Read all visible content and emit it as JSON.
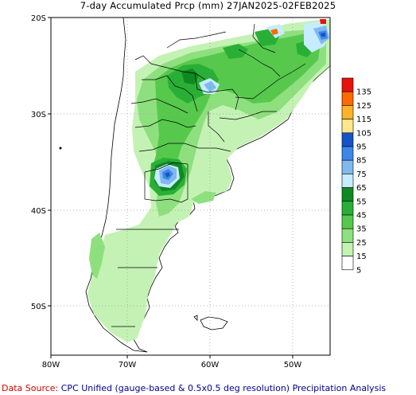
{
  "title": "7-day Accumulated Prcp (mm) 27JAN2025-02FEB2025",
  "axes": {
    "lat_labels": [
      "20S",
      "30S",
      "40S",
      "50S"
    ],
    "lon_labels": [
      "80W",
      "70W",
      "60W",
      "50W"
    ]
  },
  "legend": {
    "labels": [
      "135",
      "125",
      "115",
      "105",
      "95",
      "85",
      "75",
      "65",
      "55",
      "45",
      "35",
      "25",
      "15",
      "5"
    ],
    "colors": [
      "#e8120c",
      "#ff6a00",
      "#ffb428",
      "#ffe78c",
      "#1753c8",
      "#3d87e8",
      "#7fb9ee",
      "#c6ecff",
      "#0e8a21",
      "#2aaf36",
      "#56c94d",
      "#8ee07e",
      "#c4f2b4",
      "#ffffff"
    ]
  },
  "footer": {
    "lead": "Data Source:",
    "text": "CPC Unified (gauge-based & 0.5x0.5 deg resolution) Precipitation Analysis"
  }
}
